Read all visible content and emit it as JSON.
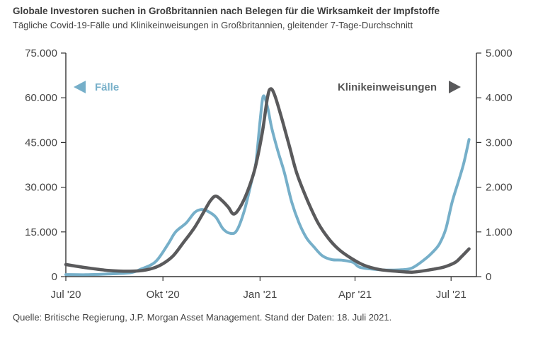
{
  "chart_title": "Globale Investoren suchen in Großbritannien nach Belegen für die Wirksamkeit der Impfstoffe",
  "chart_subtitle": "Tägliche Covid-19-Fälle und Klinikeinweisungen in Großbritannien, gleitender 7-Tage-Durchschnitt",
  "source": "Quelle: Britische Regierung, J.P. Morgan Asset Management. Stand der Daten: 18. Juli 2021.",
  "chart_data": {
    "type": "line",
    "colors": {
      "cases": "#76afc9",
      "admissions": "#5a5a5c",
      "axis": "#333333"
    },
    "x_axis": {
      "type": "date",
      "range": [
        "2020-07-01",
        "2021-07-25"
      ],
      "tick_dates": [
        "2020-07-01",
        "2020-10-01",
        "2021-01-01",
        "2021-04-01",
        "2021-07-01"
      ],
      "tick_labels": [
        "Jul '20",
        "Okt '20",
        "Jan '21",
        "Apr '21",
        "Jul '21"
      ]
    },
    "y_left": {
      "range": [
        0,
        75000
      ],
      "ticks": [
        0,
        15000,
        30000,
        45000,
        60000,
        75000
      ],
      "tick_labels": [
        "0",
        "15.000",
        "30.000",
        "45.000",
        "60.000",
        "75.000"
      ]
    },
    "y_right": {
      "range": [
        0,
        5000
      ],
      "ticks": [
        0,
        1000,
        2000,
        3000,
        4000,
        5000
      ],
      "tick_labels": [
        "0",
        "1.000",
        "2.000",
        "3.000",
        "4.000",
        "5.000"
      ]
    },
    "legend": {
      "cases_label": "Fälle",
      "admissions_label": "Klinikeinweisungen"
    },
    "series": [
      {
        "name": "Fälle",
        "axis": "left",
        "color": "#76afc9",
        "points": [
          [
            "2020-07-01",
            700
          ],
          [
            "2020-07-20",
            650
          ],
          [
            "2020-08-10",
            900
          ],
          [
            "2020-08-31",
            1300
          ],
          [
            "2020-09-10",
            2500
          ],
          [
            "2020-09-24",
            5000
          ],
          [
            "2020-10-06",
            11000
          ],
          [
            "2020-10-13",
            15000
          ],
          [
            "2020-10-23",
            18000
          ],
          [
            "2020-10-31",
            21500
          ],
          [
            "2020-11-06",
            22500
          ],
          [
            "2020-11-12",
            22000
          ],
          [
            "2020-11-20",
            20000
          ],
          [
            "2020-11-27",
            16000
          ],
          [
            "2020-12-04",
            14500
          ],
          [
            "2020-12-10",
            15500
          ],
          [
            "2020-12-17",
            22000
          ],
          [
            "2020-12-24",
            32000
          ],
          [
            "2020-12-28",
            38000
          ],
          [
            "2021-01-01",
            52000
          ],
          [
            "2021-01-04",
            60500
          ],
          [
            "2021-01-08",
            57000
          ],
          [
            "2021-01-12",
            50000
          ],
          [
            "2021-01-18",
            42000
          ],
          [
            "2021-01-24",
            35000
          ],
          [
            "2021-01-31",
            25000
          ],
          [
            "2021-02-07",
            18000
          ],
          [
            "2021-02-14",
            13000
          ],
          [
            "2021-02-21",
            10000
          ],
          [
            "2021-03-01",
            7000
          ],
          [
            "2021-03-10",
            5700
          ],
          [
            "2021-03-20",
            5500
          ],
          [
            "2021-03-30",
            4800
          ],
          [
            "2021-04-05",
            3200
          ],
          [
            "2021-04-15",
            2600
          ],
          [
            "2021-04-30",
            2200
          ],
          [
            "2021-05-15",
            2300
          ],
          [
            "2021-05-25",
            2900
          ],
          [
            "2021-06-05",
            5500
          ],
          [
            "2021-06-13",
            8000
          ],
          [
            "2021-06-20",
            11000
          ],
          [
            "2021-06-26",
            16000
          ],
          [
            "2021-07-02",
            25000
          ],
          [
            "2021-07-08",
            32000
          ],
          [
            "2021-07-13",
            38000
          ],
          [
            "2021-07-18",
            46000
          ]
        ]
      },
      {
        "name": "Klinikeinweisungen",
        "axis": "right",
        "color": "#5a5a5c",
        "points": [
          [
            "2020-07-01",
            270
          ],
          [
            "2020-07-20",
            200
          ],
          [
            "2020-08-10",
            140
          ],
          [
            "2020-08-31",
            120
          ],
          [
            "2020-09-15",
            150
          ],
          [
            "2020-09-28",
            250
          ],
          [
            "2020-10-10",
            450
          ],
          [
            "2020-10-20",
            750
          ],
          [
            "2020-10-31",
            1100
          ],
          [
            "2020-11-10",
            1500
          ],
          [
            "2020-11-15",
            1700
          ],
          [
            "2020-11-20",
            1800
          ],
          [
            "2020-11-26",
            1700
          ],
          [
            "2020-12-02",
            1550
          ],
          [
            "2020-12-07",
            1400
          ],
          [
            "2020-12-13",
            1550
          ],
          [
            "2020-12-20",
            1900
          ],
          [
            "2020-12-27",
            2400
          ],
          [
            "2021-01-03",
            3200
          ],
          [
            "2021-01-08",
            4000
          ],
          [
            "2021-01-11",
            4200
          ],
          [
            "2021-01-15",
            4050
          ],
          [
            "2021-01-22",
            3500
          ],
          [
            "2021-01-29",
            2900
          ],
          [
            "2021-02-05",
            2300
          ],
          [
            "2021-02-15",
            1700
          ],
          [
            "2021-02-25",
            1200
          ],
          [
            "2021-03-07",
            850
          ],
          [
            "2021-03-17",
            600
          ],
          [
            "2021-03-29",
            400
          ],
          [
            "2021-04-10",
            250
          ],
          [
            "2021-04-24",
            160
          ],
          [
            "2021-05-10",
            120
          ],
          [
            "2021-05-25",
            100
          ],
          [
            "2021-06-05",
            130
          ],
          [
            "2021-06-15",
            170
          ],
          [
            "2021-06-25",
            220
          ],
          [
            "2021-07-05",
            320
          ],
          [
            "2021-07-11",
            450
          ],
          [
            "2021-07-18",
            620
          ]
        ]
      }
    ]
  }
}
